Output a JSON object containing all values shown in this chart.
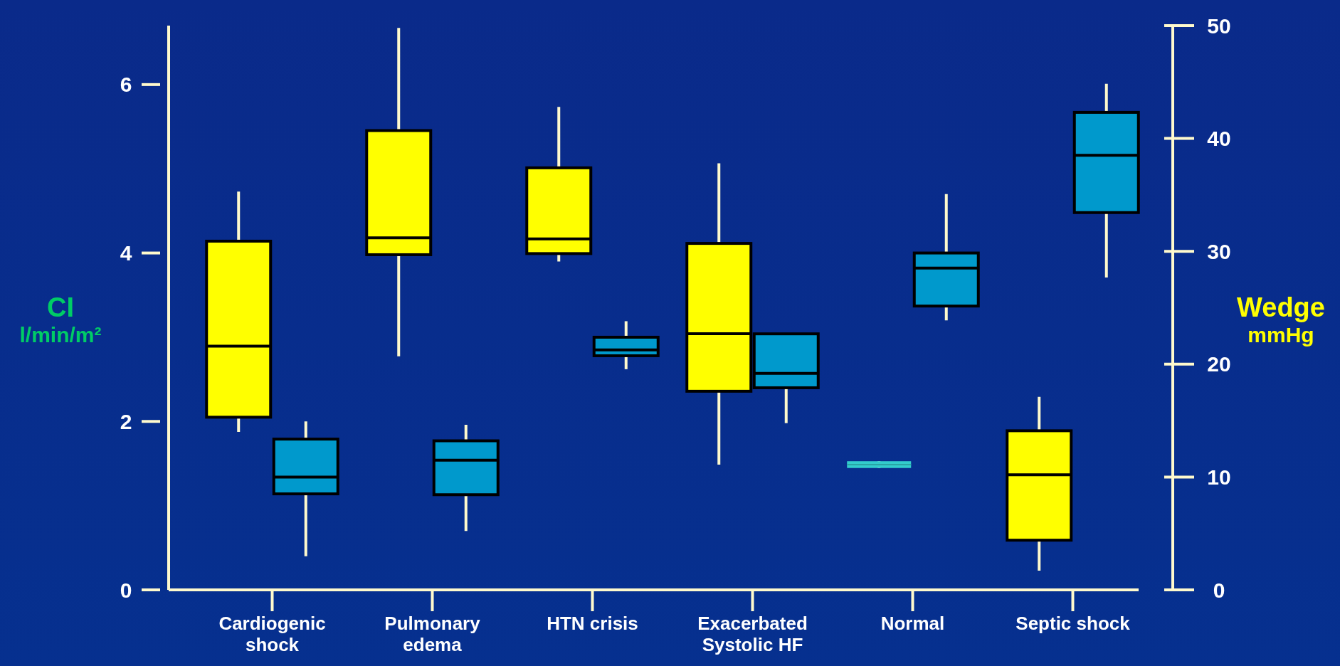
{
  "chart_data": {
    "type": "box",
    "categories": [
      "Cardiogenic shock",
      "Pulmonary edema",
      "HTN crisis",
      "Exacerbated Systolic HF",
      "Normal",
      "Septic shock"
    ],
    "ylabel": "CI\nl/min/m²",
    "y2label": "Wedge\nmmHg",
    "ylim": [
      0,
      6.7
    ],
    "yticks": [
      0,
      2,
      4,
      6
    ],
    "y2lim": [
      0,
      50
    ],
    "y2ticks": [
      0,
      10,
      20,
      30,
      40,
      50
    ],
    "series": [
      {
        "axis": "y2",
        "colors": [
          "#ffff00",
          "#ffff00",
          "#ffff00",
          "#ffff00",
          "#33cccc",
          "#ffff00"
        ],
        "boxes": [
          {
            "low": 14,
            "q1": 15.3,
            "median": 21.6,
            "q3": 30.9,
            "high": 35.3
          },
          {
            "low": 20.7,
            "q1": 29.7,
            "median": 31.2,
            "q3": 40.7,
            "high": 49.8
          },
          {
            "low": 29.1,
            "q1": 29.8,
            "median": 31.1,
            "q3": 37.4,
            "high": 42.8
          },
          {
            "low": 11.1,
            "q1": 17.6,
            "median": 22.7,
            "q3": 30.7,
            "high": 37.8
          },
          {
            "low": 10.8,
            "q1": 10.8,
            "median": 11.1,
            "q3": 11.4,
            "high": 11.4
          },
          {
            "low": 1.7,
            "q1": 4.4,
            "median": 10.2,
            "q3": 14.1,
            "high": 17.1
          }
        ]
      },
      {
        "axis": "y",
        "color": "#0099cc",
        "boxes": [
          {
            "low": 0.4,
            "q1": 1.14,
            "median": 1.34,
            "q3": 1.79,
            "high": 2.0
          },
          {
            "low": 0.7,
            "q1": 1.13,
            "median": 1.54,
            "q3": 1.77,
            "high": 1.96
          },
          {
            "low": 2.62,
            "q1": 2.78,
            "median": 2.85,
            "q3": 3.0,
            "high": 3.19
          },
          {
            "low": 1.98,
            "q1": 2.4,
            "median": 2.57,
            "q3": 3.04,
            "high": 3.04
          },
          {
            "low": 3.2,
            "q1": 3.37,
            "median": 3.82,
            "q3": 4.0,
            "high": 4.7
          },
          {
            "low": 3.71,
            "q1": 4.48,
            "median": 5.16,
            "q3": 5.67,
            "high": 6.01
          }
        ]
      }
    ]
  }
}
